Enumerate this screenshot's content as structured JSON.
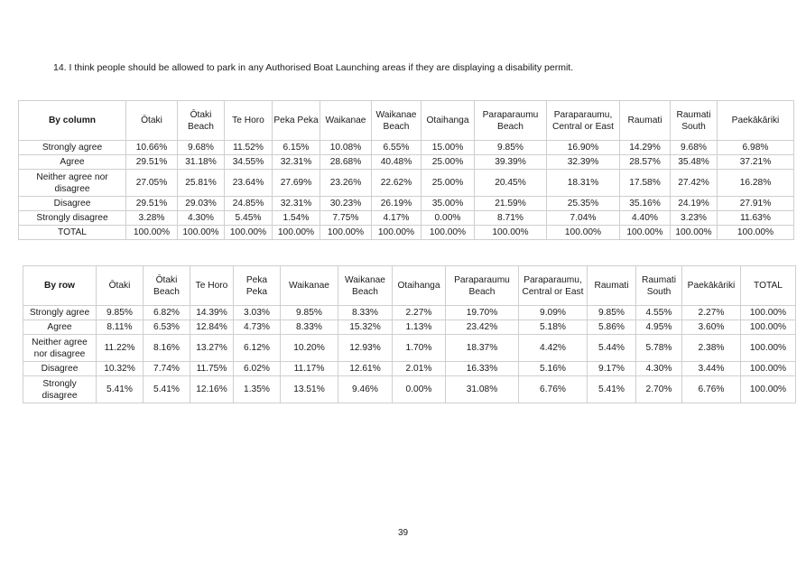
{
  "question": "14.  I think people should be allowed to park in any Authorised Boat Launching areas if they are displaying a disability permit.",
  "by_column": {
    "corner": "By column",
    "headers": [
      "Ōtaki",
      "Ōtaki Beach",
      "Te Horo",
      "Peka Peka",
      "Waikanae",
      "Waikanae Beach",
      "Otaihanga",
      "Paraparaumu Beach",
      "Paraparaumu, Central or East",
      "Raumati",
      "Raumati South",
      "Paekākāriki"
    ],
    "rows": [
      {
        "label": "Strongly agree",
        "values": [
          "10.66%",
          "9.68%",
          "11.52%",
          "6.15%",
          "10.08%",
          "6.55%",
          "15.00%",
          "9.85%",
          "16.90%",
          "14.29%",
          "9.68%",
          "6.98%"
        ]
      },
      {
        "label": "Agree",
        "values": [
          "29.51%",
          "31.18%",
          "34.55%",
          "32.31%",
          "28.68%",
          "40.48%",
          "25.00%",
          "39.39%",
          "32.39%",
          "28.57%",
          "35.48%",
          "37.21%"
        ]
      },
      {
        "label": "Neither agree nor disagree",
        "values": [
          "27.05%",
          "25.81%",
          "23.64%",
          "27.69%",
          "23.26%",
          "22.62%",
          "25.00%",
          "20.45%",
          "18.31%",
          "17.58%",
          "27.42%",
          "16.28%"
        ]
      },
      {
        "label": "Disagree",
        "values": [
          "29.51%",
          "29.03%",
          "24.85%",
          "32.31%",
          "30.23%",
          "26.19%",
          "35.00%",
          "21.59%",
          "25.35%",
          "35.16%",
          "24.19%",
          "27.91%"
        ]
      },
      {
        "label": "Strongly disagree",
        "values": [
          "3.28%",
          "4.30%",
          "5.45%",
          "1.54%",
          "7.75%",
          "4.17%",
          "0.00%",
          "8.71%",
          "7.04%",
          "4.40%",
          "3.23%",
          "11.63%"
        ]
      },
      {
        "label": "TOTAL",
        "values": [
          "100.00%",
          "100.00%",
          "100.00%",
          "100.00%",
          "100.00%",
          "100.00%",
          "100.00%",
          "100.00%",
          "100.00%",
          "100.00%",
          "100.00%",
          "100.00%"
        ]
      }
    ]
  },
  "by_row": {
    "corner": "By row",
    "headers": [
      "Ōtaki",
      "Ōtaki Beach",
      "Te Horo",
      "Peka Peka",
      "Waikanae",
      "Waikanae Beach",
      "Otaihanga",
      "Paraparaumu Beach",
      "Paraparaumu, Central or East",
      "Raumati",
      "Raumati South",
      "Paekākāriki",
      "TOTAL"
    ],
    "rows": [
      {
        "label": "Strongly agree",
        "values": [
          "9.85%",
          "6.82%",
          "14.39%",
          "3.03%",
          "9.85%",
          "8.33%",
          "2.27%",
          "19.70%",
          "9.09%",
          "9.85%",
          "4.55%",
          "2.27%",
          "100.00%"
        ]
      },
      {
        "label": "Agree",
        "values": [
          "8.11%",
          "6.53%",
          "12.84%",
          "4.73%",
          "8.33%",
          "15.32%",
          "1.13%",
          "23.42%",
          "5.18%",
          "5.86%",
          "4.95%",
          "3.60%",
          "100.00%"
        ]
      },
      {
        "label": "Neither agree nor disagree",
        "values": [
          "11.22%",
          "8.16%",
          "13.27%",
          "6.12%",
          "10.20%",
          "12.93%",
          "1.70%",
          "18.37%",
          "4.42%",
          "5.44%",
          "5.78%",
          "2.38%",
          "100.00%"
        ]
      },
      {
        "label": "Disagree",
        "values": [
          "10.32%",
          "7.74%",
          "11.75%",
          "6.02%",
          "11.17%",
          "12.61%",
          "2.01%",
          "16.33%",
          "5.16%",
          "9.17%",
          "4.30%",
          "3.44%",
          "100.00%"
        ]
      },
      {
        "label": "Strongly disagree",
        "values": [
          "5.41%",
          "5.41%",
          "12.16%",
          "1.35%",
          "13.51%",
          "9.46%",
          "0.00%",
          "31.08%",
          "6.76%",
          "5.41%",
          "2.70%",
          "6.76%",
          "100.00%"
        ]
      }
    ]
  },
  "page_number": "39"
}
